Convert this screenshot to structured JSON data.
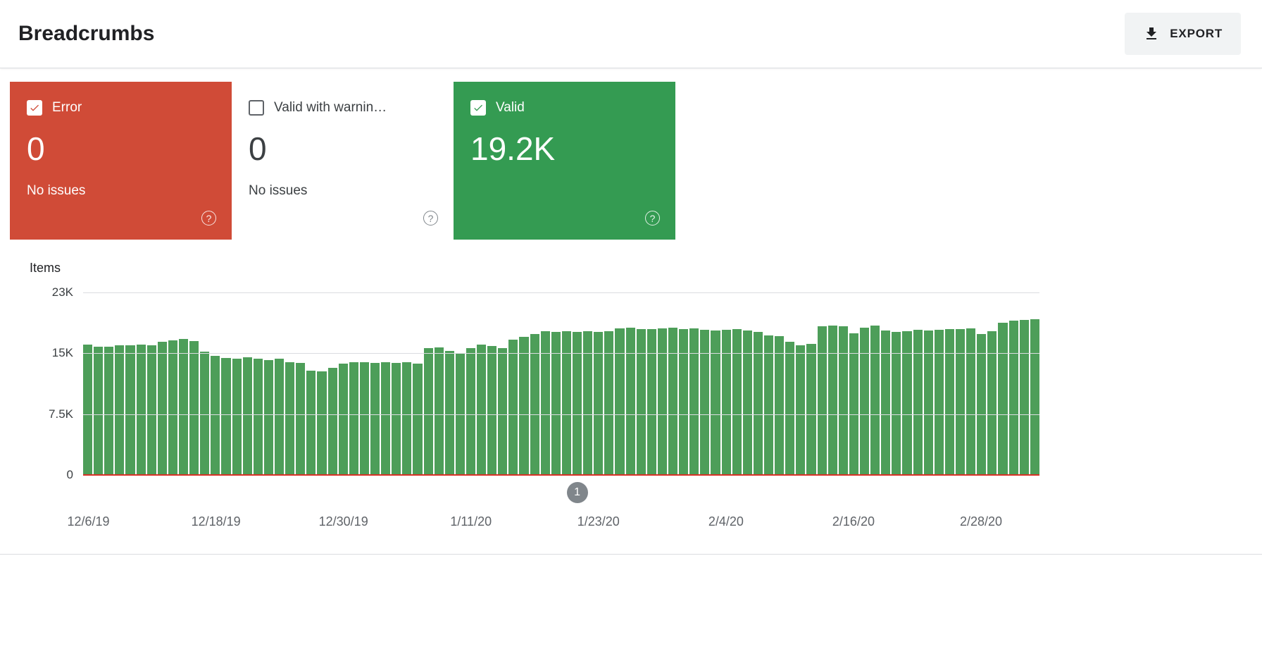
{
  "header": {
    "title": "Breadcrumbs",
    "export_label": "EXPORT"
  },
  "cards": [
    {
      "id": "error",
      "label": "Error",
      "value": "0",
      "sub": "No issues",
      "checked": true
    },
    {
      "id": "warnings",
      "label": "Valid with warnin…",
      "value": "0",
      "sub": "No issues",
      "checked": false
    },
    {
      "id": "valid",
      "label": "Valid",
      "value": "19.2K",
      "sub": "",
      "checked": true
    }
  ],
  "colors": {
    "error_bg": "#d04b37",
    "valid_bg": "#349b52",
    "bar_fill": "#4d9e59",
    "grid_line": "#dadce0",
    "baseline_red": "#d93025",
    "axis_text": "#5f6368",
    "marker_bg": "#80868b"
  },
  "chart_data": {
    "type": "bar",
    "title": "Items",
    "ylabel": "Items",
    "series_name": "Valid",
    "ylim": [
      0,
      22500
    ],
    "grid": true,
    "yticks": [
      {
        "value": 22500,
        "label": "23K"
      },
      {
        "value": 15000,
        "label": "15K"
      },
      {
        "value": 7500,
        "label": "7.5K"
      },
      {
        "value": 0,
        "label": "0"
      }
    ],
    "x_tick_labels": [
      {
        "index": 0,
        "label": "12/6/19"
      },
      {
        "index": 12,
        "label": "12/18/19"
      },
      {
        "index": 24,
        "label": "12/30/19"
      },
      {
        "index": 36,
        "label": "1/11/20"
      },
      {
        "index": 48,
        "label": "1/23/20"
      },
      {
        "index": 60,
        "label": "2/4/20"
      },
      {
        "index": 72,
        "label": "2/16/20"
      },
      {
        "index": 84,
        "label": "2/28/20"
      }
    ],
    "marker": {
      "label": "1",
      "index": 46
    },
    "dates": [
      "12/6/19",
      "12/7/19",
      "12/8/19",
      "12/9/19",
      "12/10/19",
      "12/11/19",
      "12/12/19",
      "12/13/19",
      "12/14/19",
      "12/15/19",
      "12/16/19",
      "12/17/19",
      "12/18/19",
      "12/19/19",
      "12/20/19",
      "12/21/19",
      "12/22/19",
      "12/23/19",
      "12/24/19",
      "12/25/19",
      "12/26/19",
      "12/27/19",
      "12/28/19",
      "12/29/19",
      "12/30/19",
      "12/31/19",
      "1/1/20",
      "1/2/20",
      "1/3/20",
      "1/4/20",
      "1/5/20",
      "1/6/20",
      "1/7/20",
      "1/8/20",
      "1/9/20",
      "1/10/20",
      "1/11/20",
      "1/12/20",
      "1/13/20",
      "1/14/20",
      "1/15/20",
      "1/16/20",
      "1/17/20",
      "1/18/20",
      "1/19/20",
      "1/20/20",
      "1/21/20",
      "1/22/20",
      "1/23/20",
      "1/24/20",
      "1/25/20",
      "1/26/20",
      "1/27/20",
      "1/28/20",
      "1/29/20",
      "1/30/20",
      "1/31/20",
      "2/1/20",
      "2/2/20",
      "2/3/20",
      "2/4/20",
      "2/5/20",
      "2/6/20",
      "2/7/20",
      "2/8/20",
      "2/9/20",
      "2/10/20",
      "2/11/20",
      "2/12/20",
      "2/13/20",
      "2/14/20",
      "2/15/20",
      "2/16/20",
      "2/17/20",
      "2/18/20",
      "2/19/20",
      "2/20/20",
      "2/21/20",
      "2/22/20",
      "2/23/20",
      "2/24/20",
      "2/25/20",
      "2/26/20",
      "2/27/20",
      "2/28/20",
      "2/29/20",
      "3/1/20",
      "3/2/20",
      "3/3/20",
      "3/4/20"
    ],
    "values": [
      16100,
      15800,
      15800,
      16000,
      16000,
      16100,
      16000,
      16400,
      16600,
      16800,
      16500,
      15200,
      14700,
      14400,
      14300,
      14500,
      14300,
      14200,
      14300,
      13900,
      13800,
      12900,
      12800,
      13200,
      13700,
      13900,
      13900,
      13800,
      13900,
      13800,
      13900,
      13700,
      15600,
      15700,
      15300,
      15000,
      15600,
      16100,
      15900,
      15600,
      16700,
      17000,
      17400,
      17700,
      17600,
      17700,
      17600,
      17700,
      17600,
      17700,
      18100,
      18200,
      18000,
      18000,
      18100,
      18200,
      18000,
      18100,
      17900,
      17800,
      17900,
      18000,
      17800,
      17600,
      17200,
      17100,
      16400,
      16000,
      16200,
      18300,
      18400,
      18300,
      17500,
      18200,
      18400,
      17800,
      17600,
      17700,
      17900,
      17800,
      17900,
      18000,
      18000,
      18100,
      17400,
      17700,
      18800,
      19000,
      19100,
      19200
    ]
  }
}
